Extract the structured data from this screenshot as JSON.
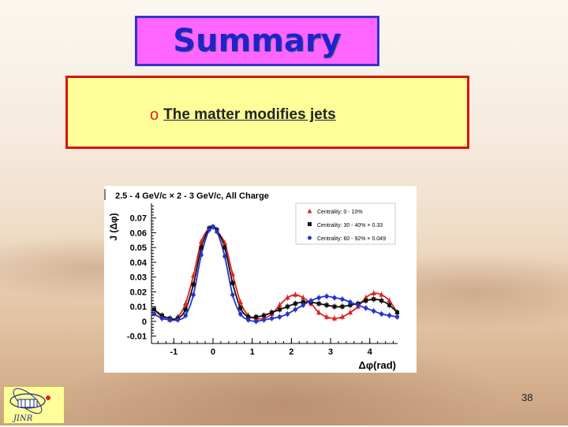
{
  "slide": {
    "title": "Summary",
    "bullet": {
      "marker": "o",
      "text": "The matter modifies jets"
    },
    "page_number": "38",
    "logo_text": "JINR",
    "colors": {
      "title_bg": "#ff66ff",
      "title_border": "#3333cc",
      "title_text": "#2222cc",
      "box_bg": "#ffff99",
      "box_border": "#dd1111"
    }
  },
  "chart_data": {
    "type": "scatter",
    "title": "2.5 - 4 GeV/c × 2 - 3 GeV/c,  All Charge",
    "xlabel": "Δφ(rad)",
    "ylabel": "J (Δφ)",
    "xlim": [
      -1.57,
      4.71
    ],
    "ylim": [
      -0.015,
      0.08
    ],
    "xticks": [
      -1,
      0,
      1,
      2,
      3,
      4
    ],
    "yticks": [
      -0.01,
      0,
      0.01,
      0.02,
      0.03,
      0.04,
      0.05,
      0.06,
      0.07
    ],
    "ytick_labels": [
      "-0.01",
      "0",
      "0.01",
      "0.02",
      "0.03",
      "0.04",
      "0.05",
      "0.06",
      "0.07"
    ],
    "legend_position": "top-right",
    "series": [
      {
        "name": "Centrality: 0 - 10%",
        "color": "#dd2222",
        "marker": "triangle",
        "x": [
          -1.5,
          -1.3,
          -1.1,
          -0.9,
          -0.7,
          -0.5,
          -0.3,
          -0.1,
          0.0,
          0.1,
          0.3,
          0.5,
          0.7,
          0.9,
          1.1,
          1.3,
          1.5,
          1.7,
          1.9,
          2.1,
          2.3,
          2.5,
          2.7,
          2.9,
          3.1,
          3.3,
          3.5,
          3.7,
          3.9,
          4.1,
          4.3,
          4.5,
          4.7
        ],
        "y": [
          0.008,
          0.003,
          0.001,
          0.003,
          0.012,
          0.031,
          0.054,
          0.063,
          0.064,
          0.061,
          0.053,
          0.032,
          0.013,
          0.004,
          0.002,
          0.002,
          0.005,
          0.011,
          0.016,
          0.018,
          0.016,
          0.012,
          0.006,
          0.003,
          0.002,
          0.003,
          0.006,
          0.01,
          0.016,
          0.019,
          0.018,
          0.014,
          0.006
        ]
      },
      {
        "name": "Centrality: 30 - 40% × 0.33",
        "color": "#111111",
        "marker": "square",
        "x": [
          -1.5,
          -1.3,
          -1.1,
          -0.9,
          -0.7,
          -0.5,
          -0.3,
          -0.1,
          0.0,
          0.1,
          0.3,
          0.5,
          0.7,
          0.9,
          1.1,
          1.3,
          1.5,
          1.7,
          1.9,
          2.1,
          2.3,
          2.5,
          2.7,
          2.9,
          3.1,
          3.3,
          3.5,
          3.7,
          3.9,
          4.1,
          4.3,
          4.5,
          4.7
        ],
        "y": [
          0.008,
          0.004,
          0.002,
          0.002,
          0.008,
          0.025,
          0.05,
          0.063,
          0.064,
          0.062,
          0.05,
          0.026,
          0.009,
          0.003,
          0.003,
          0.004,
          0.006,
          0.008,
          0.01,
          0.012,
          0.013,
          0.013,
          0.012,
          0.011,
          0.01,
          0.01,
          0.011,
          0.012,
          0.014,
          0.015,
          0.014,
          0.011,
          0.006
        ]
      },
      {
        "name": "Centrality: 60 - 92% × 0.049",
        "color": "#2233cc",
        "marker": "circle",
        "x": [
          -1.5,
          -1.3,
          -1.1,
          -0.9,
          -0.7,
          -0.5,
          -0.3,
          -0.1,
          0.0,
          0.1,
          0.3,
          0.5,
          0.7,
          0.9,
          1.1,
          1.3,
          1.5,
          1.7,
          1.9,
          2.1,
          2.3,
          2.5,
          2.7,
          2.9,
          3.1,
          3.3,
          3.5,
          3.7,
          3.9,
          4.1,
          4.3,
          4.5,
          4.7
        ],
        "y": [
          0.005,
          0.002,
          0.001,
          0.001,
          0.004,
          0.018,
          0.045,
          0.062,
          0.064,
          0.061,
          0.044,
          0.018,
          0.005,
          0.001,
          0.0,
          0.001,
          0.002,
          0.003,
          0.005,
          0.008,
          0.011,
          0.014,
          0.016,
          0.017,
          0.016,
          0.015,
          0.013,
          0.011,
          0.009,
          0.007,
          0.005,
          0.004,
          0.003
        ]
      }
    ]
  }
}
